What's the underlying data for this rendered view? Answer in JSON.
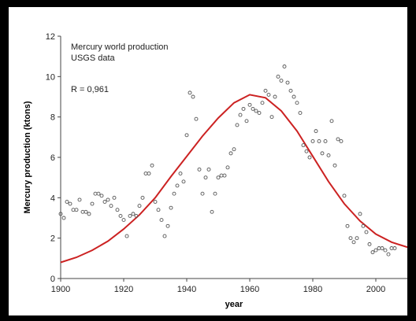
{
  "chart_data": {
    "type": "scatter",
    "title": "",
    "annotations": [
      "Mercury world production",
      "USGS data",
      "R = 0,961"
    ],
    "xlabel": "year",
    "ylabel": "Mercury production (ktons)",
    "xlim": [
      1900,
      2010
    ],
    "ylim": [
      0,
      12
    ],
    "x_ticks": [
      "1900",
      "1920",
      "1940",
      "1960",
      "1980",
      "2000"
    ],
    "y_ticks": [
      "0",
      "2",
      "4",
      "6",
      "8",
      "10",
      "12"
    ],
    "grid": false,
    "legend": "none",
    "series": [
      {
        "kind": "points",
        "marker": "open-circle",
        "color": "#555555",
        "x": [
          1900,
          1901,
          1902,
          1903,
          1904,
          1905,
          1906,
          1907,
          1908,
          1909,
          1910,
          1911,
          1912,
          1913,
          1914,
          1915,
          1916,
          1917,
          1918,
          1919,
          1920,
          1921,
          1922,
          1923,
          1924,
          1925,
          1926,
          1927,
          1928,
          1929,
          1930,
          1931,
          1932,
          1933,
          1934,
          1935,
          1936,
          1937,
          1938,
          1939,
          1940,
          1941,
          1942,
          1943,
          1944,
          1945,
          1946,
          1947,
          1948,
          1949,
          1950,
          1951,
          1952,
          1953,
          1954,
          1955,
          1956,
          1957,
          1958,
          1959,
          1960,
          1961,
          1962,
          1963,
          1964,
          1965,
          1966,
          1967,
          1968,
          1969,
          1970,
          1971,
          1972,
          1973,
          1974,
          1975,
          1976,
          1977,
          1978,
          1979,
          1980,
          1981,
          1982,
          1983,
          1984,
          1985,
          1986,
          1987,
          1988,
          1989,
          1990,
          1991,
          1992,
          1993,
          1994,
          1995,
          1996,
          1997,
          1998,
          1999,
          2000,
          2001,
          2002,
          2003,
          2004,
          2005,
          2006
        ],
        "y": [
          3.2,
          3.0,
          3.8,
          3.7,
          3.4,
          3.4,
          3.9,
          3.3,
          3.3,
          3.2,
          3.7,
          4.2,
          4.2,
          4.1,
          3.8,
          3.9,
          3.6,
          4.0,
          3.4,
          3.1,
          2.9,
          2.1,
          3.1,
          3.2,
          3.1,
          3.6,
          4.0,
          5.2,
          5.2,
          5.6,
          3.8,
          3.4,
          2.9,
          2.1,
          2.6,
          3.5,
          4.2,
          4.6,
          5.2,
          4.8,
          7.1,
          9.2,
          9.0,
          7.9,
          5.4,
          4.2,
          5.0,
          5.4,
          3.3,
          4.2,
          5.0,
          5.1,
          5.1,
          5.5,
          6.2,
          6.4,
          7.6,
          8.1,
          8.4,
          7.8,
          8.6,
          8.4,
          8.3,
          8.2,
          8.7,
          9.3,
          9.1,
          8.0,
          9.0,
          10.0,
          9.8,
          10.5,
          9.7,
          9.3,
          9.0,
          8.7,
          8.2,
          6.6,
          6.3,
          6.0,
          6.8,
          7.3,
          6.8,
          6.2,
          6.8,
          6.1,
          7.8,
          5.6,
          6.9,
          6.8,
          4.1,
          2.6,
          2.0,
          1.8,
          2.0,
          3.2,
          2.6,
          2.3,
          1.7,
          1.3,
          1.4,
          1.5,
          1.5,
          1.4,
          1.2,
          1.5,
          1.5
        ]
      },
      {
        "kind": "line",
        "name": "",
        "color": "#cc2222",
        "x": [
          1900,
          1905,
          1910,
          1915,
          1920,
          1925,
          1930,
          1935,
          1940,
          1945,
          1950,
          1955,
          1960,
          1965,
          1970,
          1975,
          1980,
          1985,
          1990,
          1995,
          2000,
          2005,
          2010
        ],
        "y": [
          0.8,
          1.05,
          1.4,
          1.85,
          2.45,
          3.15,
          4.0,
          5.05,
          6.05,
          7.05,
          7.95,
          8.7,
          9.1,
          8.95,
          8.3,
          7.3,
          6.05,
          4.8,
          3.7,
          2.85,
          2.2,
          1.8,
          1.55
        ]
      }
    ]
  }
}
